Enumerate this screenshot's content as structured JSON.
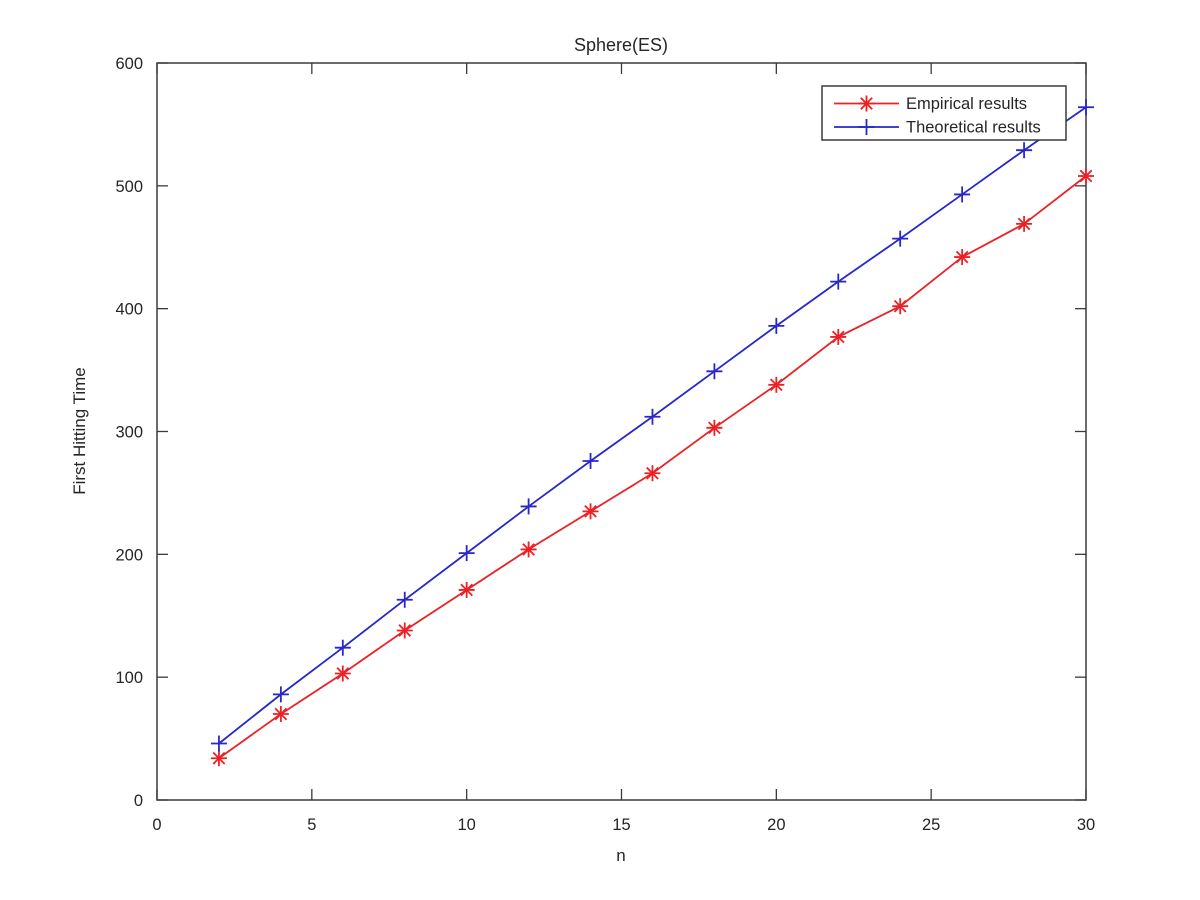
{
  "figure": {
    "background": "#ffffff",
    "axis_color": "#3a3a3a",
    "text_color": "#262626"
  },
  "chart_data": {
    "type": "line",
    "title": "Sphere(ES)",
    "xlabel": "n",
    "ylabel": "First Hitting Time",
    "xlim": [
      0,
      30
    ],
    "ylim": [
      0,
      600
    ],
    "x_ticks": [
      0,
      5,
      10,
      15,
      20,
      25,
      30
    ],
    "y_ticks": [
      0,
      100,
      200,
      300,
      400,
      500,
      600
    ],
    "grid": false,
    "box": true,
    "tick_direction": "in",
    "legend_position": "top-right-inside",
    "x": [
      2,
      4,
      6,
      8,
      10,
      12,
      14,
      16,
      18,
      20,
      22,
      24,
      26,
      28,
      30
    ],
    "series": [
      {
        "name": "Empirical results",
        "color": "#EB2125",
        "marker": "asterisk",
        "values": [
          34,
          70,
          103,
          138,
          171,
          204,
          235,
          266,
          303,
          338,
          377,
          402,
          442,
          469,
          508
        ]
      },
      {
        "name": "Theoretical results",
        "color": "#2727CC",
        "marker": "plus",
        "values": [
          46,
          86,
          124,
          163,
          201,
          239,
          276,
          312,
          349,
          386,
          422,
          457,
          493,
          529,
          564
        ]
      }
    ]
  }
}
